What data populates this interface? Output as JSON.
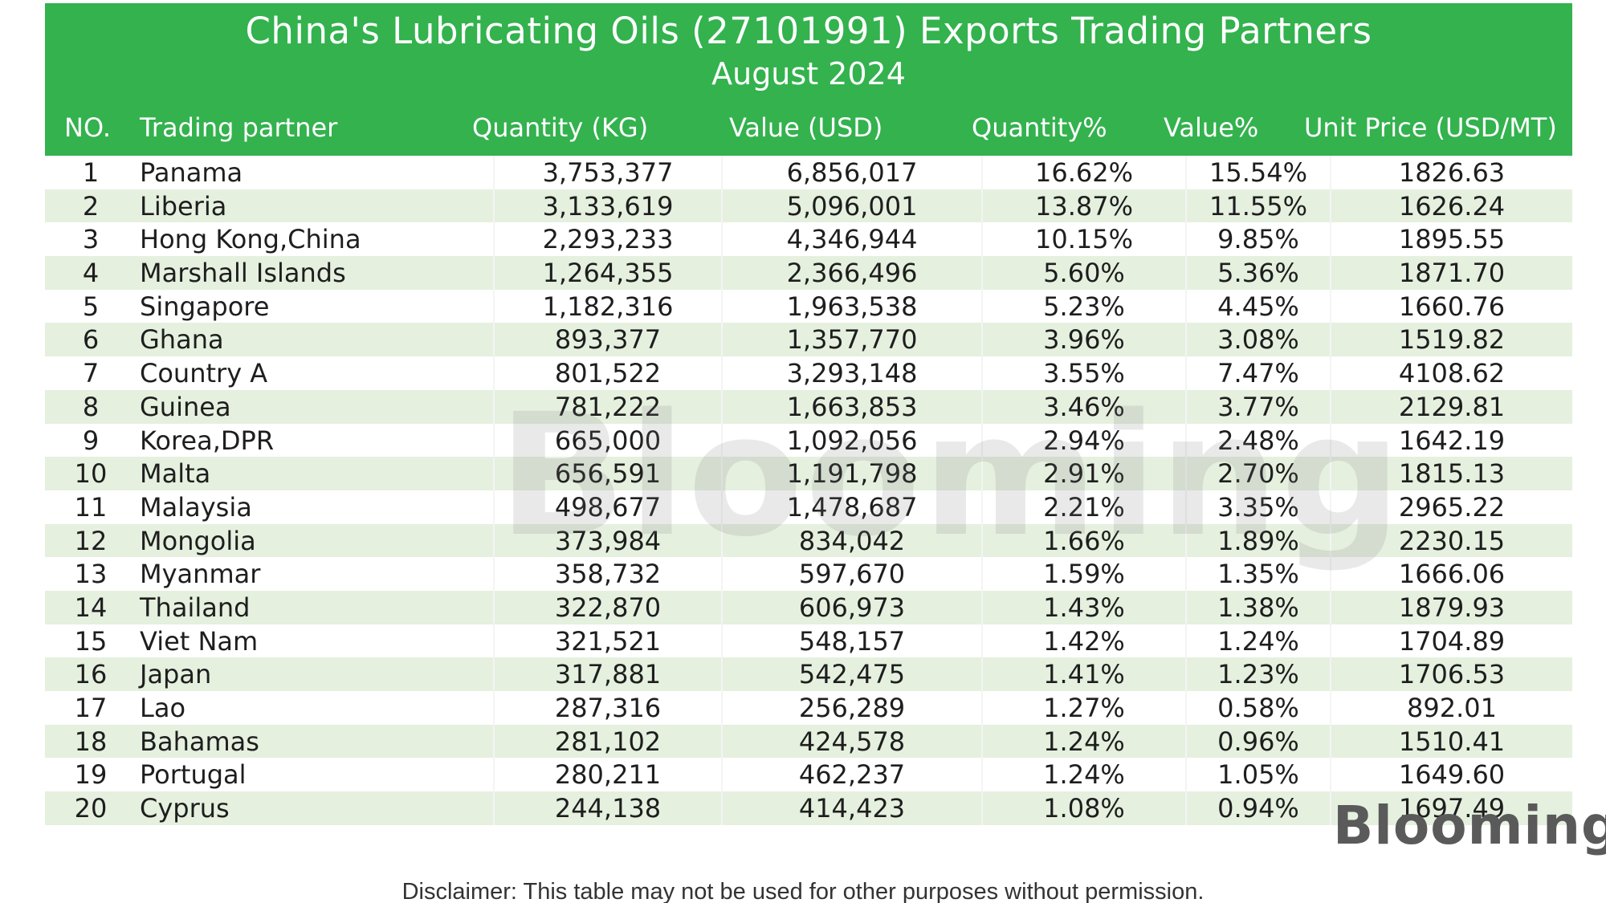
{
  "header": {
    "title": "China's Lubricating Oils (27101991)  Exports Trading Partners",
    "subtitle": "August 2024"
  },
  "columns": {
    "no": "NO.",
    "partner": "Trading partner",
    "quantity": "Quantity (KG)",
    "value": "Value (USD)",
    "quantity_pct": "Quantity%",
    "value_pct": "Value%",
    "unit_price": "Unit Price (USD/MT)"
  },
  "rows": [
    {
      "no": "1",
      "partner": "Panama",
      "quantity": "3,753,377",
      "value": "6,856,017",
      "quantity_pct": "16.62%",
      "value_pct": "15.54%",
      "unit_price": "1826.63"
    },
    {
      "no": "2",
      "partner": "Liberia",
      "quantity": "3,133,619",
      "value": "5,096,001",
      "quantity_pct": "13.87%",
      "value_pct": "11.55%",
      "unit_price": "1626.24"
    },
    {
      "no": "3",
      "partner": "Hong Kong,China",
      "quantity": "2,293,233",
      "value": "4,346,944",
      "quantity_pct": "10.15%",
      "value_pct": "9.85%",
      "unit_price": "1895.55"
    },
    {
      "no": "4",
      "partner": "Marshall Islands",
      "quantity": "1,264,355",
      "value": "2,366,496",
      "quantity_pct": "5.60%",
      "value_pct": "5.36%",
      "unit_price": "1871.70"
    },
    {
      "no": "5",
      "partner": "Singapore",
      "quantity": "1,182,316",
      "value": "1,963,538",
      "quantity_pct": "5.23%",
      "value_pct": "4.45%",
      "unit_price": "1660.76"
    },
    {
      "no": "6",
      "partner": "Ghana",
      "quantity": "893,377",
      "value": "1,357,770",
      "quantity_pct": "3.96%",
      "value_pct": "3.08%",
      "unit_price": "1519.82"
    },
    {
      "no": "7",
      "partner": "Country A",
      "quantity": "801,522",
      "value": "3,293,148",
      "quantity_pct": "3.55%",
      "value_pct": "7.47%",
      "unit_price": "4108.62"
    },
    {
      "no": "8",
      "partner": "Guinea",
      "quantity": "781,222",
      "value": "1,663,853",
      "quantity_pct": "3.46%",
      "value_pct": "3.77%",
      "unit_price": "2129.81"
    },
    {
      "no": "9",
      "partner": "Korea,DPR",
      "quantity": "665,000",
      "value": "1,092,056",
      "quantity_pct": "2.94%",
      "value_pct": "2.48%",
      "unit_price": "1642.19"
    },
    {
      "no": "10",
      "partner": "Malta",
      "quantity": "656,591",
      "value": "1,191,798",
      "quantity_pct": "2.91%",
      "value_pct": "2.70%",
      "unit_price": "1815.13"
    },
    {
      "no": "11",
      "partner": "Malaysia",
      "quantity": "498,677",
      "value": "1,478,687",
      "quantity_pct": "2.21%",
      "value_pct": "3.35%",
      "unit_price": "2965.22"
    },
    {
      "no": "12",
      "partner": "Mongolia",
      "quantity": "373,984",
      "value": "834,042",
      "quantity_pct": "1.66%",
      "value_pct": "1.89%",
      "unit_price": "2230.15"
    },
    {
      "no": "13",
      "partner": "Myanmar",
      "quantity": "358,732",
      "value": "597,670",
      "quantity_pct": "1.59%",
      "value_pct": "1.35%",
      "unit_price": "1666.06"
    },
    {
      "no": "14",
      "partner": "Thailand",
      "quantity": "322,870",
      "value": "606,973",
      "quantity_pct": "1.43%",
      "value_pct": "1.38%",
      "unit_price": "1879.93"
    },
    {
      "no": "15",
      "partner": "Viet Nam",
      "quantity": "321,521",
      "value": "548,157",
      "quantity_pct": "1.42%",
      "value_pct": "1.24%",
      "unit_price": "1704.89"
    },
    {
      "no": "16",
      "partner": "Japan",
      "quantity": "317,881",
      "value": "542,475",
      "quantity_pct": "1.41%",
      "value_pct": "1.23%",
      "unit_price": "1706.53"
    },
    {
      "no": "17",
      "partner": "Lao",
      "quantity": "287,316",
      "value": "256,289",
      "quantity_pct": "1.27%",
      "value_pct": "0.58%",
      "unit_price": "892.01"
    },
    {
      "no": "18",
      "partner": "Bahamas",
      "quantity": "281,102",
      "value": "424,578",
      "quantity_pct": "1.24%",
      "value_pct": "0.96%",
      "unit_price": "1510.41"
    },
    {
      "no": "19",
      "partner": "Portugal",
      "quantity": "280,211",
      "value": "462,237",
      "quantity_pct": "1.24%",
      "value_pct": "1.05%",
      "unit_price": "1649.60"
    },
    {
      "no": "20",
      "partner": "Cyprus",
      "quantity": "244,138",
      "value": "414,423",
      "quantity_pct": "1.08%",
      "value_pct": "0.94%",
      "unit_price": "1697.49"
    }
  ],
  "watermark": "Blooming",
  "logo": "Blooming",
  "disclaimer": "Disclaimer: This table may not be used for other purposes without permission.",
  "colors": {
    "header_green": "#33b24e",
    "row_alt": "#e5f0df"
  }
}
